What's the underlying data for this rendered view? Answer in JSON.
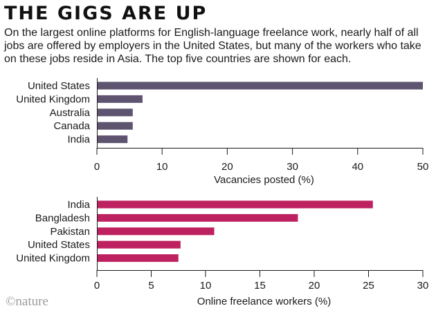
{
  "header": {
    "title": "THE GIGS ARE UP",
    "subtitle": "On the largest online platforms for English-language freelance work, nearly half of all jobs are offered by employers in the United States, but many of the workers who take on these jobs reside in Asia. The top five countries are shown for each."
  },
  "credit": "©nature",
  "chart_data": [
    {
      "type": "bar",
      "orientation": "horizontal",
      "categories": [
        "United States",
        "United Kingdom",
        "Australia",
        "Canada",
        "India"
      ],
      "values": [
        50,
        7,
        5.5,
        5.5,
        4.7
      ],
      "xlabel": "Vacancies posted (%)",
      "xlim": [
        0,
        50
      ],
      "xticks": [
        0,
        10,
        20,
        30,
        40,
        50
      ],
      "color": "#5e5470",
      "grid": false
    },
    {
      "type": "bar",
      "orientation": "horizontal",
      "categories": [
        "India",
        "Bangladesh",
        "Pakistan",
        "United States",
        "United Kingdom"
      ],
      "values": [
        25.4,
        18.5,
        10.8,
        7.7,
        7.5
      ],
      "xlabel": "Online freelance workers (%)",
      "xlim": [
        0,
        30
      ],
      "xticks": [
        0,
        5,
        10,
        15,
        20,
        25,
        30
      ],
      "color": "#be2160",
      "grid": false
    }
  ]
}
